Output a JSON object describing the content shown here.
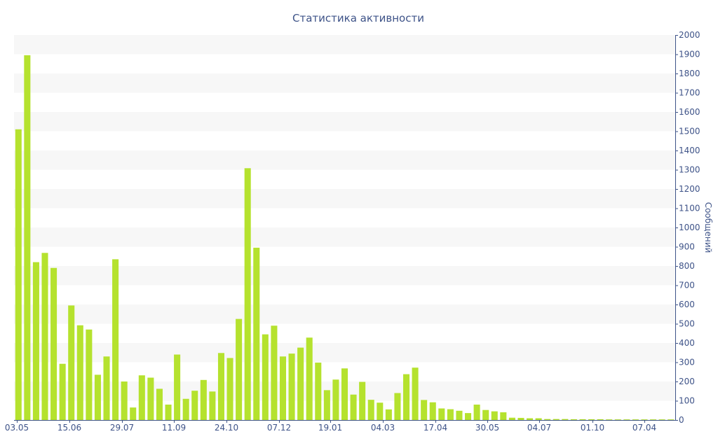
{
  "chart_data": {
    "type": "bar",
    "title": "Статистика активности",
    "ylabel": "Сообщений",
    "xlabel": "",
    "ylim": [
      0,
      2000
    ],
    "y_ticks": [
      0,
      100,
      200,
      300,
      400,
      500,
      600,
      700,
      800,
      900,
      1000,
      1100,
      1200,
      1300,
      1400,
      1500,
      1600,
      1700,
      1800,
      1900,
      2000
    ],
    "y_axis_side": "right",
    "grid": "alternating horizontal bands",
    "legend": "none",
    "x_tick_labels": [
      "03.05",
      "15.06",
      "29.07",
      "11.09",
      "24.10",
      "07.12",
      "19.01",
      "04.03",
      "17.04",
      "30.05",
      "04.07",
      "01.10",
      "07.04"
    ],
    "bar_color": "#b5e22e",
    "band_color": "#f7f7f7",
    "text_color": "#3e5388",
    "values": [
      1510,
      1895,
      820,
      868,
      790,
      292,
      595,
      492,
      470,
      235,
      330,
      835,
      200,
      65,
      232,
      220,
      162,
      80,
      340,
      110,
      152,
      208,
      148,
      348,
      322,
      525,
      1308,
      895,
      445,
      490,
      330,
      345,
      376,
      428,
      298,
      155,
      210,
      268,
      132,
      198,
      105,
      90,
      55,
      140,
      238,
      272,
      104,
      92,
      60,
      56,
      48,
      36,
      80,
      52,
      45,
      40,
      12,
      11,
      9,
      9,
      5,
      5,
      5,
      4,
      4,
      4,
      4,
      3,
      3,
      3,
      3,
      3,
      3,
      3,
      3
    ]
  }
}
